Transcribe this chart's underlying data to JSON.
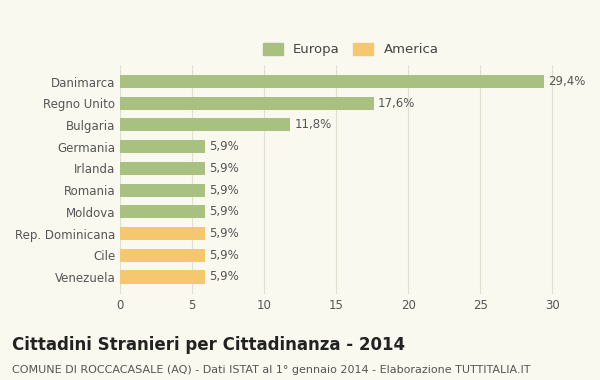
{
  "categories": [
    "Danimarca",
    "Regno Unito",
    "Bulgaria",
    "Germania",
    "Irlanda",
    "Romania",
    "Moldova",
    "Rep. Dominicana",
    "Cile",
    "Venezuela"
  ],
  "values": [
    29.4,
    17.6,
    11.8,
    5.9,
    5.9,
    5.9,
    5.9,
    5.9,
    5.9,
    5.9
  ],
  "labels": [
    "29,4%",
    "17,6%",
    "11,8%",
    "5,9%",
    "5,9%",
    "5,9%",
    "5,9%",
    "5,9%",
    "5,9%",
    "5,9%"
  ],
  "colors": [
    "#a8c080",
    "#a8c080",
    "#a8c080",
    "#a8c080",
    "#a8c080",
    "#a8c080",
    "#a8c080",
    "#f5c870",
    "#f5c870",
    "#f5c870"
  ],
  "europa_color": "#a8c080",
  "america_color": "#f5c870",
  "xlim": [
    0,
    32
  ],
  "xticks": [
    0,
    5,
    10,
    15,
    20,
    25,
    30
  ],
  "title": "Cittadini Stranieri per Cittadinanza - 2014",
  "subtitle": "COMUNE DI ROCCACASALE (AQ) - Dati ISTAT al 1° gennaio 2014 - Elaborazione TUTTITALIA.IT",
  "legend_europa": "Europa",
  "legend_america": "America",
  "bg_color": "#f9f9f0",
  "grid_color": "#e0e0d0",
  "bar_height": 0.6,
  "title_fontsize": 12,
  "subtitle_fontsize": 8,
  "label_fontsize": 8.5,
  "tick_fontsize": 8.5,
  "legend_fontsize": 9.5
}
